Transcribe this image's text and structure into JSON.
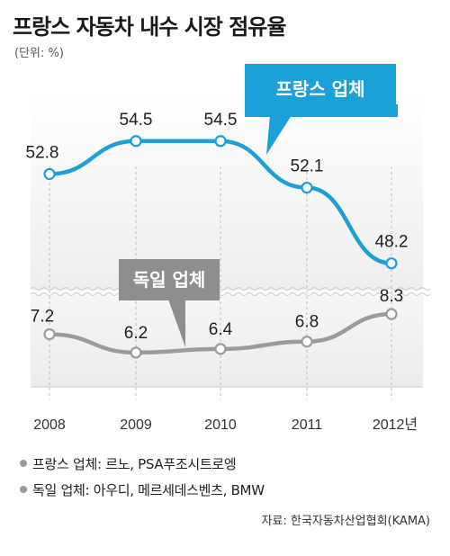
{
  "header": {
    "title": "프랑스 자동차 내수 시장 점유율",
    "unit": "(단위: %)"
  },
  "chart_data": {
    "type": "line",
    "categories": [
      "2008",
      "2009",
      "2010",
      "2011",
      "2012년"
    ],
    "series": [
      {
        "name": "프랑스 업체",
        "values": [
          52.8,
          54.5,
          54.5,
          52.1,
          48.2
        ],
        "labels": [
          "52.8",
          "54.5",
          "54.5",
          "52.1",
          "48.2"
        ],
        "color": "#1ba0d8"
      },
      {
        "name": "독일 업체",
        "values": [
          7.2,
          6.2,
          6.4,
          6.8,
          8.3
        ],
        "labels": [
          "7.2",
          "6.2",
          "6.4",
          "6.8",
          "8.3"
        ],
        "color": "#9b9b9b"
      }
    ],
    "axis_break": true,
    "grid": "vertical"
  },
  "notes": [
    {
      "text": "프랑스 업체: 르노, PSA푸조시트로엥"
    },
    {
      "text": "독일 업체: 아우디, 메르세데스벤츠, BMW"
    }
  ],
  "source": "자료: 한국자동차산업협회(KAMA)"
}
